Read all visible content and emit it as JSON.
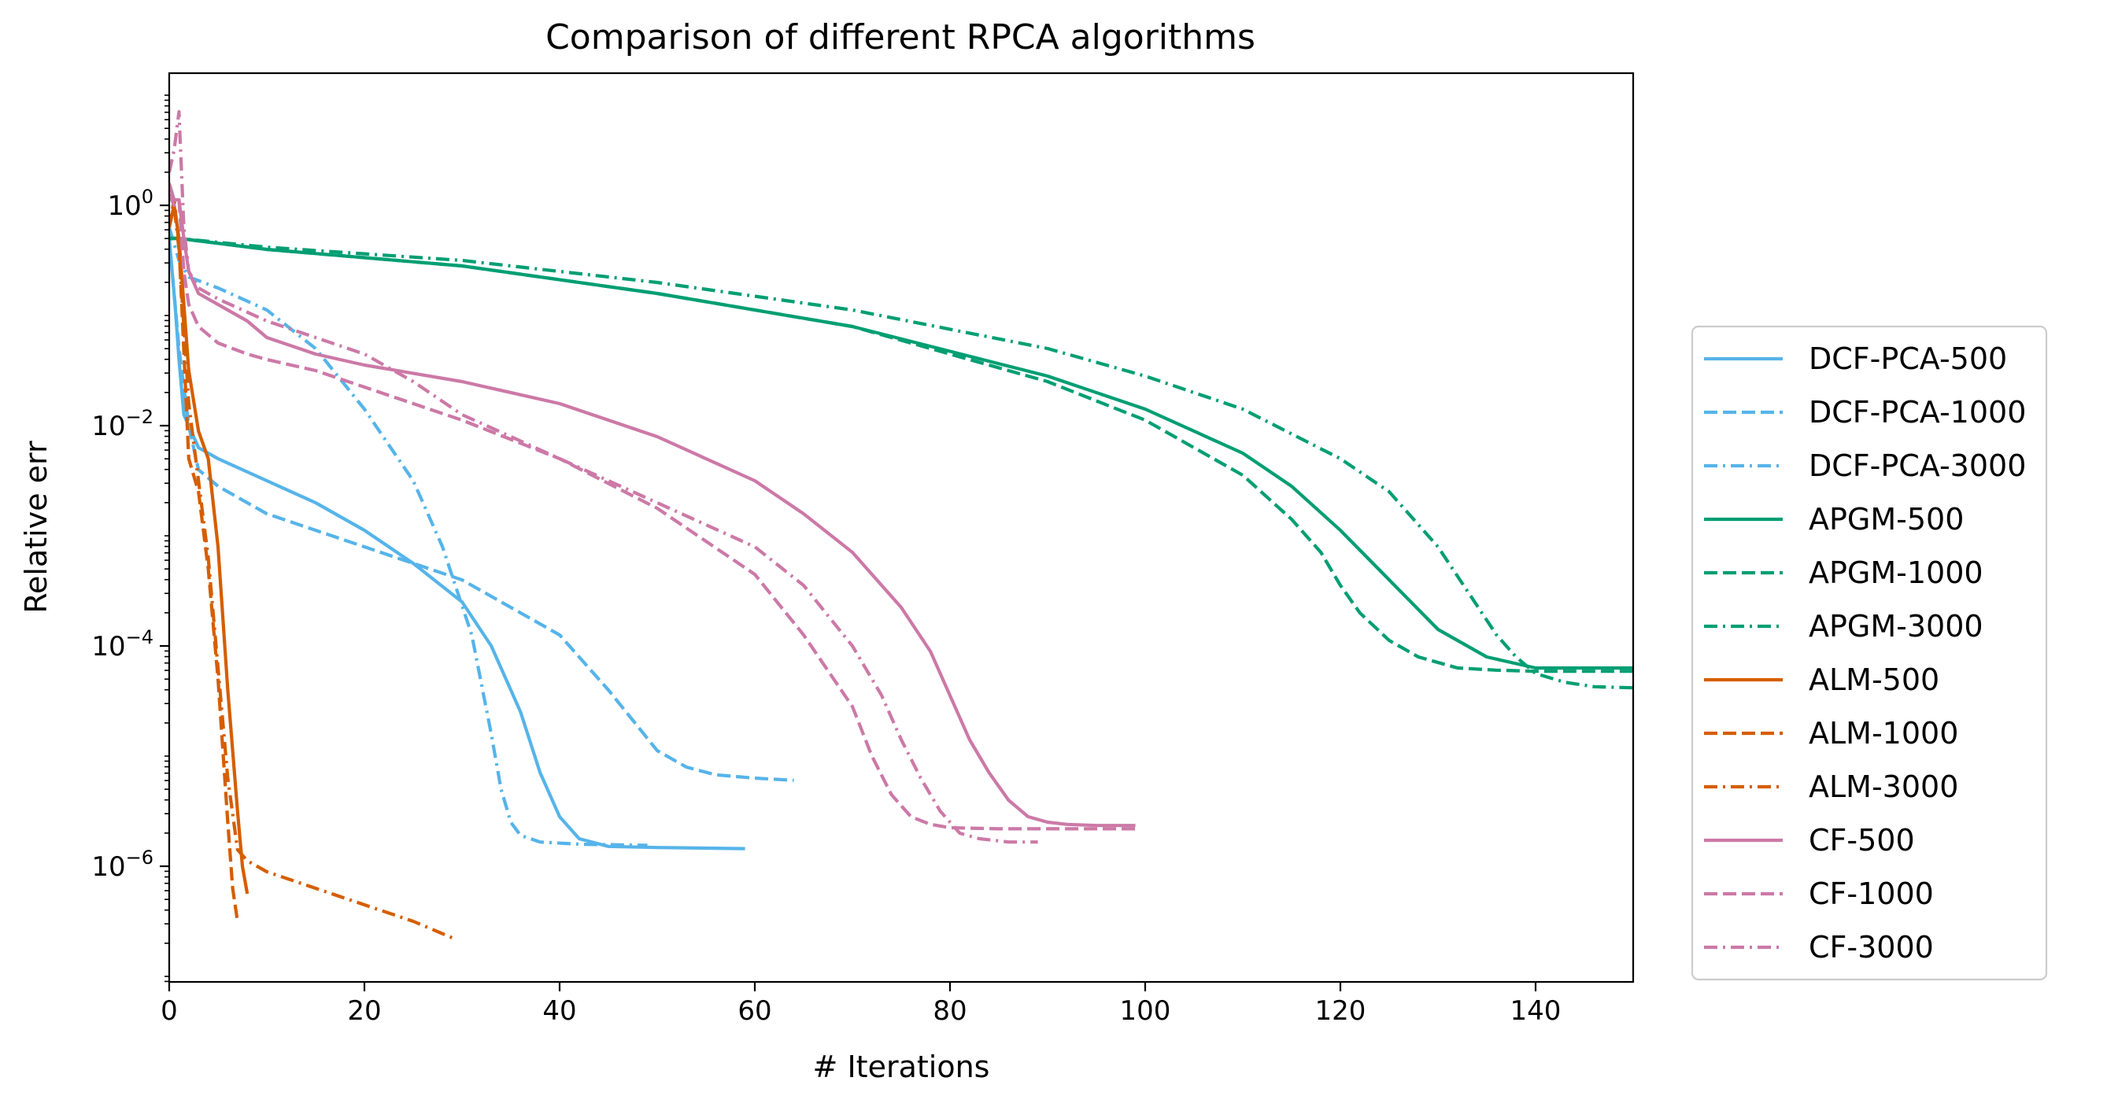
{
  "chart_data": {
    "type": "line",
    "title": "Comparison of different RPCA algorithms",
    "xlabel": "# Iterations",
    "ylabel": "Relative err",
    "xlim": [
      0,
      150
    ],
    "ylim_log10": [
      -7.05,
      1.2
    ],
    "yscale": "log",
    "grid": false,
    "legend_position": "right-outside-center",
    "x_ticks": [
      {
        "value": 0,
        "label": "0"
      },
      {
        "value": 20,
        "label": "20"
      },
      {
        "value": 40,
        "label": "40"
      },
      {
        "value": 60,
        "label": "60"
      },
      {
        "value": 80,
        "label": "80"
      },
      {
        "value": 100,
        "label": "100"
      },
      {
        "value": 120,
        "label": "120"
      },
      {
        "value": 140,
        "label": "140"
      }
    ],
    "y_ticks": [
      {
        "log10": 0,
        "base": "10",
        "exp": "0"
      },
      {
        "log10": -2,
        "base": "10",
        "exp": "−2"
      },
      {
        "log10": -4,
        "base": "10",
        "exp": "−4"
      },
      {
        "log10": -6,
        "base": "10",
        "exp": "−6"
      }
    ],
    "series": [
      {
        "name": "DCF-PCA-500",
        "color": "#56b4e9",
        "dash": "solid",
        "x": [
          0,
          0.6,
          1,
          1.5,
          2,
          3,
          5,
          10,
          15,
          20,
          25,
          30,
          33,
          36,
          38,
          40,
          42,
          45,
          50,
          59
        ],
        "log10_y": [
          -0.3,
          -0.9,
          -1.4,
          -1.9,
          -2.0,
          -2.2,
          -2.3,
          -2.5,
          -2.7,
          -2.95,
          -3.25,
          -3.6,
          -4.0,
          -4.6,
          -5.15,
          -5.55,
          -5.75,
          -5.82,
          -5.83,
          -5.84
        ]
      },
      {
        "name": "DCF-PCA-1000",
        "color": "#56b4e9",
        "dash": "dashed",
        "x": [
          0,
          1,
          2,
          3,
          5,
          10,
          20,
          30,
          40,
          45,
          50,
          53,
          56,
          60,
          64
        ],
        "log10_y": [
          -0.3,
          -1.3,
          -2.0,
          -2.4,
          -2.55,
          -2.8,
          -3.1,
          -3.4,
          -3.9,
          -4.4,
          -4.95,
          -5.1,
          -5.17,
          -5.2,
          -5.22
        ]
      },
      {
        "name": "DCF-PCA-3000",
        "color": "#56b4e9",
        "dash": "dashdot",
        "x": [
          0,
          1,
          2,
          5,
          10,
          15,
          20,
          25,
          28,
          31,
          33,
          34,
          35,
          36,
          38,
          42,
          49
        ],
        "log10_y": [
          -0.2,
          -0.5,
          -0.65,
          -0.75,
          -0.95,
          -1.3,
          -1.85,
          -2.5,
          -3.1,
          -3.9,
          -4.8,
          -5.3,
          -5.6,
          -5.72,
          -5.78,
          -5.8,
          -5.81
        ]
      },
      {
        "name": "APGM-500",
        "color": "#009e73",
        "dash": "solid",
        "x": [
          0,
          1,
          10,
          30,
          50,
          70,
          90,
          100,
          110,
          115,
          120,
          125,
          130,
          135,
          140,
          150
        ],
        "log10_y": [
          -0.3,
          -0.3,
          -0.4,
          -0.55,
          -0.8,
          -1.1,
          -1.55,
          -1.85,
          -2.25,
          -2.55,
          -2.95,
          -3.4,
          -3.85,
          -4.1,
          -4.2,
          -4.2
        ]
      },
      {
        "name": "APGM-1000",
        "color": "#009e73",
        "dash": "dashed",
        "x": [
          0,
          1,
          10,
          30,
          50,
          70,
          90,
          100,
          110,
          115,
          118,
          120,
          122,
          125,
          128,
          132,
          136,
          140,
          150
        ],
        "log10_y": [
          -0.3,
          -0.3,
          -0.4,
          -0.55,
          -0.8,
          -1.1,
          -1.6,
          -1.95,
          -2.45,
          -2.85,
          -3.15,
          -3.45,
          -3.7,
          -3.95,
          -4.1,
          -4.2,
          -4.22,
          -4.23,
          -4.23
        ]
      },
      {
        "name": "APGM-3000",
        "color": "#009e73",
        "dash": "dashdot",
        "x": [
          0,
          1,
          10,
          30,
          50,
          70,
          90,
          100,
          110,
          120,
          125,
          130,
          133,
          136,
          138,
          140,
          143,
          146,
          150
        ],
        "log10_y": [
          -0.3,
          -0.3,
          -0.38,
          -0.5,
          -0.7,
          -0.95,
          -1.3,
          -1.55,
          -1.85,
          -2.3,
          -2.6,
          -3.1,
          -3.5,
          -3.9,
          -4.1,
          -4.25,
          -4.33,
          -4.37,
          -4.38
        ]
      },
      {
        "name": "ALM-500",
        "color": "#d55e00",
        "dash": "solid",
        "x": [
          0,
          0.5,
          1,
          2,
          3,
          4,
          5,
          6,
          7,
          7.5,
          8
        ],
        "log10_y": [
          -0.2,
          0.0,
          -0.3,
          -1.5,
          -2.05,
          -2.3,
          -3.1,
          -4.4,
          -5.5,
          -6.0,
          -6.25
        ]
      },
      {
        "name": "ALM-1000",
        "color": "#d55e00",
        "dash": "dashed",
        "x": [
          0,
          0.5,
          1,
          2,
          3,
          4,
          5,
          6,
          6.5,
          7
        ],
        "log10_y": [
          -0.2,
          0.05,
          -0.35,
          -2.3,
          -2.6,
          -3.3,
          -4.3,
          -5.6,
          -6.2,
          -6.5
        ]
      },
      {
        "name": "ALM-3000",
        "color": "#d55e00",
        "dash": "dashdot",
        "x": [
          0,
          0.5,
          1,
          2,
          3,
          4,
          5,
          6,
          7,
          8,
          10,
          15,
          20,
          25,
          29
        ],
        "log10_y": [
          -0.2,
          0.0,
          -0.4,
          -1.8,
          -2.5,
          -3.2,
          -4.2,
          -5.2,
          -5.85,
          -5.95,
          -6.05,
          -6.2,
          -6.35,
          -6.5,
          -6.65
        ]
      },
      {
        "name": "CF-500",
        "color": "#cc79a7",
        "dash": "solid",
        "x": [
          0,
          0.5,
          1,
          1.5,
          2,
          3,
          5,
          8,
          10,
          15,
          20,
          30,
          40,
          50,
          60,
          65,
          70,
          75,
          78,
          80,
          82,
          84,
          86,
          88,
          90,
          92,
          95,
          99
        ],
        "log10_y": [
          0.2,
          0.05,
          0.05,
          -0.3,
          -0.6,
          -0.8,
          -0.9,
          -1.05,
          -1.2,
          -1.35,
          -1.45,
          -1.6,
          -1.8,
          -2.1,
          -2.5,
          -2.8,
          -3.15,
          -3.65,
          -4.05,
          -4.45,
          -4.85,
          -5.15,
          -5.4,
          -5.55,
          -5.6,
          -5.62,
          -5.63,
          -5.63
        ]
      },
      {
        "name": "CF-1000",
        "color": "#cc79a7",
        "dash": "dashed",
        "x": [
          0,
          0.5,
          1,
          1.5,
          2,
          3,
          5,
          8,
          10,
          15,
          20,
          30,
          40,
          50,
          55,
          60,
          65,
          70,
          72,
          74,
          76,
          78,
          80,
          85,
          90,
          99
        ],
        "log10_y": [
          0.1,
          0.0,
          0.05,
          -0.6,
          -0.9,
          -1.1,
          -1.25,
          -1.35,
          -1.4,
          -1.5,
          -1.65,
          -1.95,
          -2.3,
          -2.75,
          -3.05,
          -3.35,
          -3.9,
          -4.55,
          -5.0,
          -5.35,
          -5.55,
          -5.62,
          -5.65,
          -5.66,
          -5.66,
          -5.66
        ]
      },
      {
        "name": "CF-3000",
        "color": "#cc79a7",
        "dash": "dashdot",
        "x": [
          0,
          0.5,
          1,
          1.5,
          2,
          3,
          5,
          10,
          15,
          20,
          25,
          30,
          40,
          50,
          60,
          65,
          70,
          73,
          75,
          77,
          79,
          81,
          83,
          86,
          89
        ],
        "log10_y": [
          0.3,
          0.5,
          0.85,
          -0.2,
          -0.6,
          -0.75,
          -0.85,
          -1.05,
          -1.2,
          -1.35,
          -1.6,
          -1.9,
          -2.3,
          -2.7,
          -3.1,
          -3.45,
          -4.0,
          -4.45,
          -4.85,
          -5.2,
          -5.5,
          -5.7,
          -5.75,
          -5.78,
          -5.78
        ]
      }
    ]
  }
}
